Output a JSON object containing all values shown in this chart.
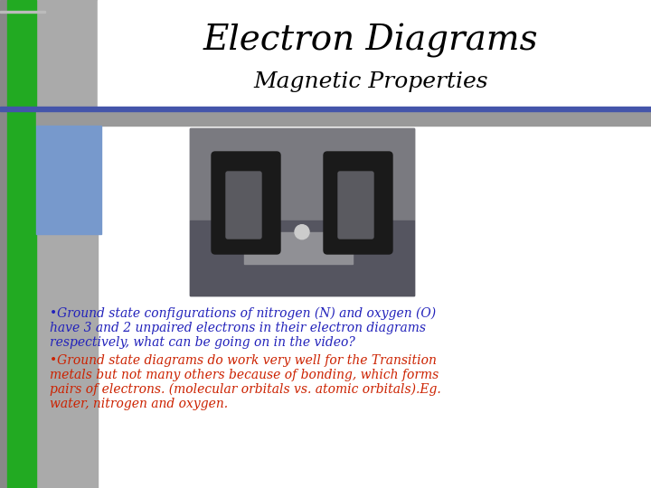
{
  "title": "Electron Diagrams",
  "subtitle": "Magnetic Properties",
  "title_color": "#000000",
  "subtitle_color": "#000000",
  "background_color": "#ffffff",
  "text_color_blue": "#2222bb",
  "text_color_red": "#cc2200",
  "bullet1": "•Ground state configurations of nitrogen (N) and oxygen (O) have 3 and 2 unpaired electrons in their electron diagrams respectively, what can be going on in the video?",
  "bullet2": "•Ground state diagrams do work very well for the Transition metals but not many others because of bonding, which forms pairs of electrons. (molecular orbitals vs. atomic orbitals).Eg. water, nitrogen and oxygen.",
  "figsize": [
    7.2,
    5.4
  ],
  "dpi": 100,
  "sidebar_dark_gray": "#888888",
  "sidebar_green": "#22aa22",
  "sidebar_mid_gray": "#aaaaaa",
  "blue_rect_color": "#7799cc",
  "hline_color": "#4455aa",
  "gray_band_color": "#999999"
}
